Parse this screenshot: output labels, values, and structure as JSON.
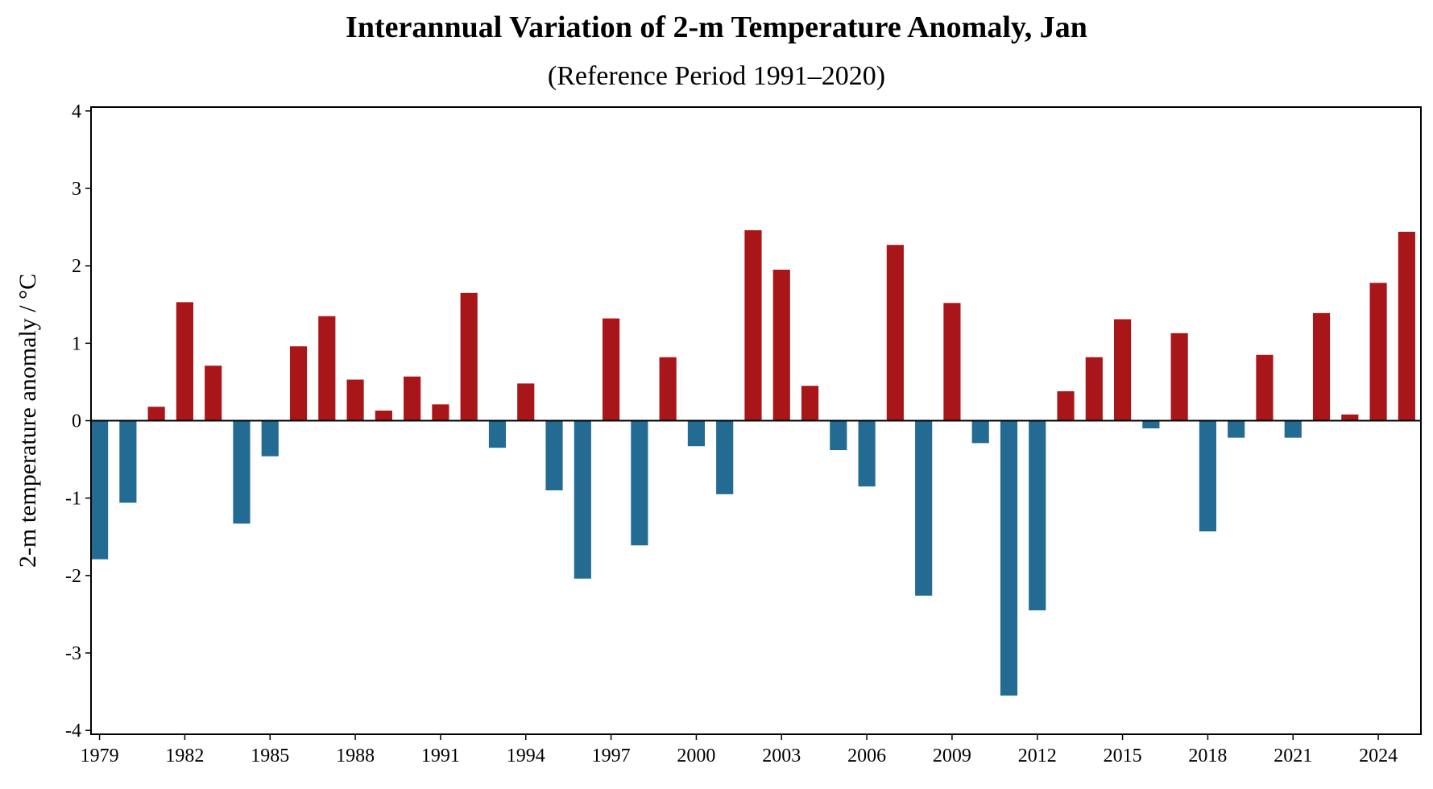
{
  "chart_data": {
    "type": "bar",
    "title": "Interannual Variation of 2-m Temperature Anomaly, Jan",
    "subtitle": "(Reference Period 1991–2020)",
    "xlabel": "",
    "ylabel": "2-m temperature anomaly / °C",
    "ylim": [
      -4.05,
      4.05
    ],
    "xlim": [
      1978.7,
      2025.5
    ],
    "yticks": [
      -4,
      -3,
      -2,
      -1,
      0,
      1,
      2,
      3,
      4
    ],
    "ytick_labels": [
      "-4",
      "-3",
      "-2",
      "-1",
      "0",
      "1",
      "2",
      "3",
      "4"
    ],
    "xticks": [
      1979,
      1982,
      1985,
      1988,
      1991,
      1994,
      1997,
      2000,
      2003,
      2006,
      2009,
      2012,
      2015,
      2018,
      2021,
      2024
    ],
    "xtick_labels": [
      "1979",
      "1982",
      "1985",
      "1988",
      "1991",
      "1994",
      "1997",
      "2000",
      "2003",
      "2006",
      "2009",
      "2012",
      "2015",
      "2018",
      "2021",
      "2024"
    ],
    "years": [
      1979,
      1980,
      1981,
      1982,
      1983,
      1984,
      1985,
      1986,
      1987,
      1988,
      1989,
      1990,
      1991,
      1992,
      1993,
      1994,
      1995,
      1996,
      1997,
      1998,
      1999,
      2000,
      2001,
      2002,
      2003,
      2004,
      2005,
      2006,
      2007,
      2008,
      2009,
      2010,
      2011,
      2012,
      2013,
      2014,
      2015,
      2016,
      2017,
      2018,
      2019,
      2020,
      2021,
      2022,
      2023,
      2024,
      2025
    ],
    "values": [
      -1.79,
      -1.06,
      0.18,
      1.53,
      0.71,
      -1.33,
      -0.46,
      0.96,
      1.35,
      0.53,
      0.13,
      0.57,
      0.21,
      1.65,
      -0.35,
      0.48,
      -0.9,
      -2.04,
      1.32,
      -1.61,
      0.82,
      -0.33,
      -0.95,
      2.46,
      1.95,
      0.45,
      -0.38,
      -0.85,
      2.27,
      -2.26,
      1.52,
      -0.29,
      -3.55,
      -2.45,
      0.38,
      0.82,
      1.31,
      -0.1,
      1.13,
      -1.43,
      -0.22,
      0.85,
      -0.22,
      1.39,
      0.08,
      1.78,
      2.44
    ],
    "colors": {
      "positive": "#a8161a",
      "negative": "#246b94",
      "zero_line": "#000000"
    }
  }
}
